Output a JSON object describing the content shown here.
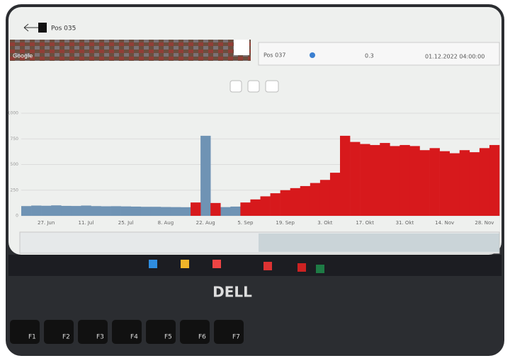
{
  "header": {
    "title": "Pos 035",
    "map_label": "Google"
  },
  "status_row": {
    "name": "Pos 037",
    "value": "0.3",
    "timestamp": "01.12.2022 04:00:00"
  },
  "chart_data": {
    "type": "bar",
    "categories": [
      null,
      null,
      "27. Jun",
      null,
      null,
      null,
      "11. Jul",
      null,
      null,
      null,
      "25. Jul",
      null,
      null,
      null,
      "8. Aug",
      null,
      null,
      null,
      "22. Aug",
      null,
      null,
      null,
      "5. Sep",
      null,
      null,
      null,
      "19. Sep",
      null,
      null,
      null,
      "3. Okt",
      null,
      null,
      null,
      "17. Okt",
      null,
      null,
      null,
      "31. Okt",
      null,
      null,
      null,
      "14. Nov",
      null,
      null,
      null,
      "28. Nov",
      null
    ],
    "series": [
      {
        "color": "#6f93b4",
        "values": [
          95,
          100,
          98,
          102,
          97,
          96,
          100,
          95,
          93,
          94,
          92,
          90,
          88,
          88,
          86,
          85,
          84,
          null,
          780,
          null,
          85,
          90,
          null,
          null,
          null,
          null,
          null,
          null,
          null,
          null,
          null,
          null,
          null,
          null,
          null,
          null,
          null,
          null,
          null,
          null,
          null,
          null,
          null,
          null,
          null,
          null,
          null,
          null
        ]
      },
      {
        "color": "#d7191c",
        "values": [
          null,
          null,
          null,
          null,
          null,
          null,
          null,
          null,
          null,
          null,
          null,
          null,
          null,
          null,
          null,
          null,
          null,
          130,
          null,
          125,
          null,
          null,
          130,
          160,
          190,
          220,
          250,
          270,
          290,
          320,
          350,
          420,
          780,
          720,
          700,
          690,
          710,
          680,
          690,
          680,
          640,
          660,
          630,
          610,
          640,
          620,
          660,
          690
        ]
      }
    ],
    "ylim": [
      0,
      1000
    ],
    "yticks": [
      0,
      250,
      500,
      750,
      1000
    ],
    "grid": true
  },
  "laptop": {
    "brand": "DELL",
    "keys": [
      "F1",
      "F2",
      "F3",
      "F4",
      "F5",
      "F6",
      "F7"
    ]
  }
}
